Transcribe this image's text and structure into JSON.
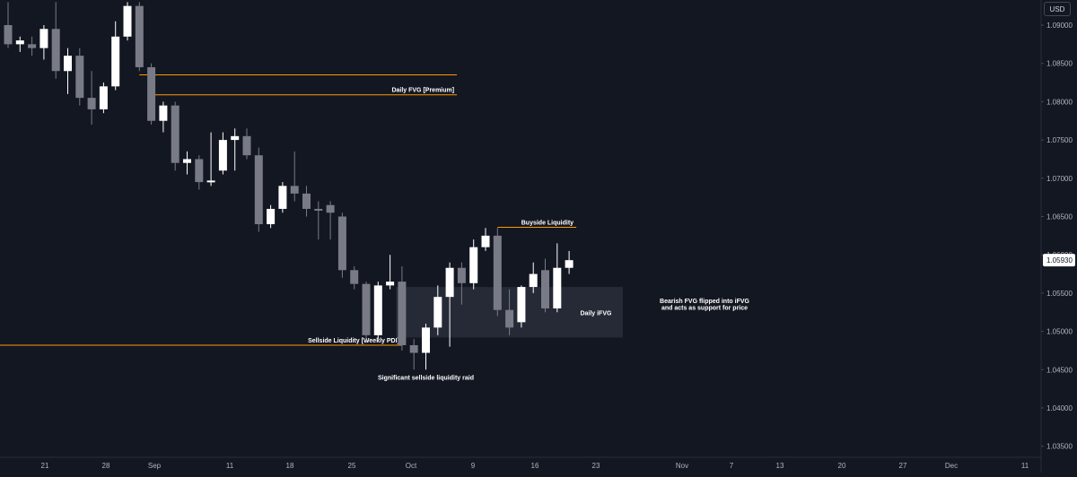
{
  "header": {
    "currency": "USD"
  },
  "colors": {
    "background": "#131722",
    "bullish_candle": "#ffffff",
    "bearish_candle": "#787b86",
    "level_line": "#ff9800",
    "fvg_zone": "#2a2e39",
    "axis_text": "#b2b5be"
  },
  "chart_data": {
    "type": "candlestick",
    "grid": false,
    "y_scale": "linear",
    "ylim": [
      1.0325,
      1.0915
    ],
    "yticks": [
      "1.09000",
      "1.08500",
      "1.08000",
      "1.07500",
      "1.07000",
      "1.06500",
      "1.06000",
      "1.05500",
      "1.05000",
      "1.04500",
      "1.04000",
      "1.03500"
    ],
    "xticks": [
      "21",
      "28",
      "Sep",
      "11",
      "18",
      "25",
      "Oct",
      "9",
      "16",
      "23",
      "Nov",
      "7",
      "13",
      "20",
      "27",
      "Dec",
      "11"
    ],
    "last_price": "1.05930",
    "candles": [
      {
        "o": 1.09,
        "h": 1.093,
        "l": 1.087,
        "c": 1.0875
      },
      {
        "o": 1.0875,
        "h": 1.0885,
        "l": 1.0865,
        "c": 1.088
      },
      {
        "o": 1.0875,
        "h": 1.0885,
        "l": 1.086,
        "c": 1.087
      },
      {
        "o": 1.087,
        "h": 1.09,
        "l": 1.0855,
        "c": 1.0895
      },
      {
        "o": 1.0895,
        "h": 1.093,
        "l": 1.083,
        "c": 1.084
      },
      {
        "o": 1.084,
        "h": 1.087,
        "l": 1.081,
        "c": 1.086
      },
      {
        "o": 1.086,
        "h": 1.087,
        "l": 1.0795,
        "c": 1.0805
      },
      {
        "o": 1.0805,
        "h": 1.084,
        "l": 1.077,
        "c": 1.079
      },
      {
        "o": 1.079,
        "h": 1.0825,
        "l": 1.0785,
        "c": 1.082
      },
      {
        "o": 1.082,
        "h": 1.0905,
        "l": 1.0815,
        "c": 1.0885
      },
      {
        "o": 1.0885,
        "h": 1.093,
        "l": 1.088,
        "c": 1.0925
      },
      {
        "o": 1.0925,
        "h": 1.093,
        "l": 1.084,
        "c": 1.0845
      },
      {
        "o": 1.0845,
        "h": 1.085,
        "l": 1.077,
        "c": 1.0775
      },
      {
        "o": 1.0775,
        "h": 1.08,
        "l": 1.076,
        "c": 1.0795
      },
      {
        "o": 1.0795,
        "h": 1.08,
        "l": 1.071,
        "c": 1.072
      },
      {
        "o": 1.072,
        "h": 1.0735,
        "l": 1.0705,
        "c": 1.0725
      },
      {
        "o": 1.0725,
        "h": 1.073,
        "l": 1.0685,
        "c": 1.0695
      },
      {
        "o": 1.0695,
        "h": 1.076,
        "l": 1.069,
        "c": 1.0697
      },
      {
        "o": 1.071,
        "h": 1.076,
        "l": 1.0705,
        "c": 1.075
      },
      {
        "o": 1.075,
        "h": 1.0765,
        "l": 1.071,
        "c": 1.0755
      },
      {
        "o": 1.0755,
        "h": 1.0765,
        "l": 1.0725,
        "c": 1.073
      },
      {
        "o": 1.073,
        "h": 1.074,
        "l": 1.063,
        "c": 1.064
      },
      {
        "o": 1.064,
        "h": 1.0665,
        "l": 1.0635,
        "c": 1.066
      },
      {
        "o": 1.066,
        "h": 1.0695,
        "l": 1.0655,
        "c": 1.069
      },
      {
        "o": 1.069,
        "h": 1.0735,
        "l": 1.067,
        "c": 1.068
      },
      {
        "o": 1.068,
        "h": 1.069,
        "l": 1.065,
        "c": 1.066
      },
      {
        "o": 1.066,
        "h": 1.067,
        "l": 1.062,
        "c": 1.0658
      },
      {
        "o": 1.0665,
        "h": 1.067,
        "l": 1.062,
        "c": 1.0655
      },
      {
        "o": 1.065,
        "h": 1.0655,
        "l": 1.057,
        "c": 1.058
      },
      {
        "o": 1.058,
        "h": 1.0585,
        "l": 1.0555,
        "c": 1.0562
      },
      {
        "o": 1.0562,
        "h": 1.0565,
        "l": 1.0485,
        "c": 1.0495
      },
      {
        "o": 1.0495,
        "h": 1.0565,
        "l": 1.049,
        "c": 1.056
      },
      {
        "o": 1.056,
        "h": 1.06,
        "l": 1.0555,
        "c": 1.0565
      },
      {
        "o": 1.0565,
        "h": 1.0585,
        "l": 1.0475,
        "c": 1.0482
      },
      {
        "o": 1.0482,
        "h": 1.049,
        "l": 1.045,
        "c": 1.0472
      },
      {
        "o": 1.0472,
        "h": 1.051,
        "l": 1.045,
        "c": 1.0505
      },
      {
        "o": 1.0505,
        "h": 1.056,
        "l": 1.0495,
        "c": 1.0545
      },
      {
        "o": 1.0545,
        "h": 1.059,
        "l": 1.048,
        "c": 1.0583
      },
      {
        "o": 1.0583,
        "h": 1.059,
        "l": 1.0535,
        "c": 1.0563
      },
      {
        "o": 1.0563,
        "h": 1.062,
        "l": 1.0555,
        "c": 1.061
      },
      {
        "o": 1.061,
        "h": 1.0635,
        "l": 1.0605,
        "c": 1.0625
      },
      {
        "o": 1.0625,
        "h": 1.0635,
        "l": 1.052,
        "c": 1.0528
      },
      {
        "o": 1.0528,
        "h": 1.0555,
        "l": 1.0495,
        "c": 1.0505
      },
      {
        "o": 1.0512,
        "h": 1.056,
        "l": 1.0505,
        "c": 1.0558
      },
      {
        "o": 1.0558,
        "h": 1.059,
        "l": 1.055,
        "c": 1.0575
      },
      {
        "o": 1.058,
        "h": 1.0595,
        "l": 1.0525,
        "c": 1.053
      },
      {
        "o": 1.053,
        "h": 1.0615,
        "l": 1.0525,
        "c": 1.0583
      },
      {
        "o": 1.0583,
        "h": 1.0605,
        "l": 1.0575,
        "c": 1.0593
      }
    ],
    "levels": [
      {
        "price": 1.0835,
        "from": 11,
        "to": 37.6
      },
      {
        "price": 1.0809,
        "from": 12,
        "to": 37.6,
        "label": "Daily FVG [Premium]"
      },
      {
        "price": 1.0636,
        "from": 41,
        "to": 47.6,
        "label": "Buyside Liquidity"
      },
      {
        "price": 1.0482,
        "from": -10,
        "to": 33,
        "label": "Sellside Liquidity [Weekly PDI]"
      }
    ],
    "zones": [
      {
        "top": 1.0558,
        "bottom": 1.0492,
        "from": 32.5,
        "to": 51.5,
        "label": "Daily iFVG"
      }
    ],
    "annotations": [
      {
        "text": "Significant sellside liquidity raid",
        "x_index": 35,
        "price": 1.0437
      },
      {
        "text": "Bearish FVG flipped into iFVG",
        "x_index": 56.5,
        "price": 1.0537
      },
      {
        "text": "and acts as support for price",
        "x_index": 56.5,
        "price": 1.0528
      }
    ]
  }
}
